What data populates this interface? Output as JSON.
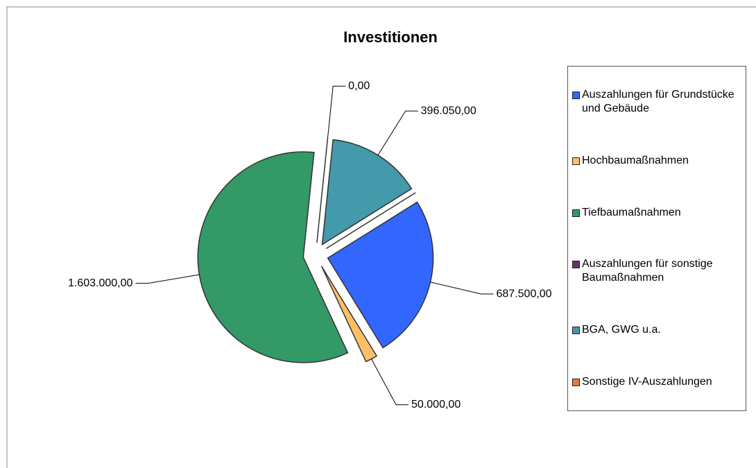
{
  "chart_data": {
    "type": "pie",
    "title": "Investitionen",
    "categories": [
      "Auszahlungen für Grundstücke und Gebäude",
      "Hochbaumaßnahmen",
      "Tiefbaumaßnahmen",
      "Auszahlungen für sonstige Baumaßnahmen",
      "BGA, GWG u.a.",
      "Sonstige IV-Auszahlungen"
    ],
    "values": [
      687500,
      50000,
      1603000,
      0,
      396050,
      0
    ],
    "value_labels": [
      "687.500,00",
      "50.000,00",
      "1.603.000,00",
      "0,00",
      "396.050,00",
      null
    ],
    "colors": [
      "#3366ff",
      "#ffbf66",
      "#339966",
      "#663366",
      "#4499aa",
      "#e87b2e"
    ],
    "legend": "right"
  }
}
